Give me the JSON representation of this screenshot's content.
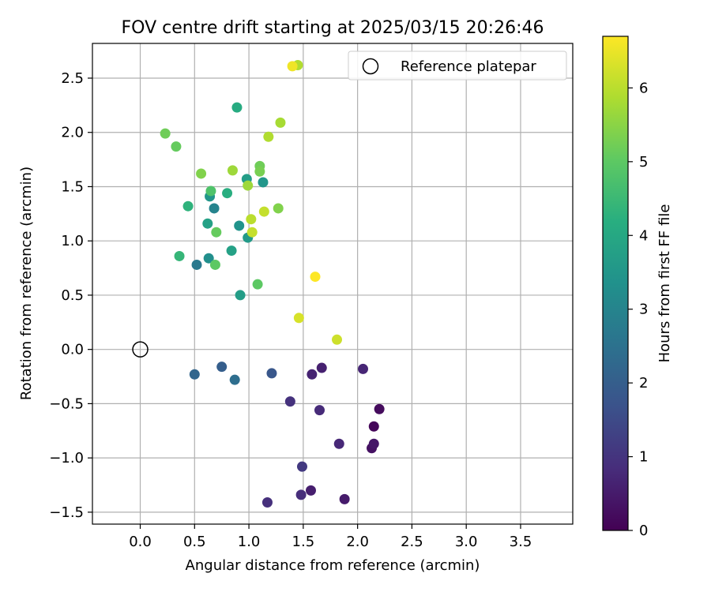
{
  "chart_data": {
    "type": "scatter",
    "title": "FOV centre drift starting at 2025/03/15 20:26:46",
    "xlabel": "Angular distance from reference (arcmin)",
    "ylabel": "Rotation from reference (arcmin)",
    "xlim": [
      -0.44,
      3.98
    ],
    "ylim": [
      -1.61,
      2.82
    ],
    "xticks": [
      0.0,
      0.5,
      1.0,
      1.5,
      2.0,
      2.5,
      3.0,
      3.5
    ],
    "xtick_labels": [
      "0.0",
      "0.5",
      "1.0",
      "1.5",
      "2.0",
      "2.5",
      "3.0",
      "3.5"
    ],
    "yticks": [
      -1.5,
      -1.0,
      -0.5,
      0.0,
      0.5,
      1.0,
      1.5,
      2.0,
      2.5
    ],
    "ytick_labels": [
      "−1.5",
      "−1.0",
      "−0.5",
      "0.0",
      "0.5",
      "1.0",
      "1.5",
      "2.0",
      "2.5"
    ],
    "grid": true,
    "legend_position": "top-right",
    "reference": {
      "label": "Reference platepar",
      "x": 0.0,
      "y": 0.0
    },
    "colorbar": {
      "label": "Hours from first FF file",
      "colormap": "viridis",
      "range": [
        0,
        6.7
      ],
      "ticks": [
        0,
        1,
        2,
        3,
        4,
        5,
        6
      ],
      "tick_labels": [
        "0",
        "1",
        "2",
        "3",
        "4",
        "5",
        "6"
      ]
    },
    "points": [
      {
        "x": 2.15,
        "y": -0.71,
        "t": 0.1
      },
      {
        "x": 2.2,
        "y": -0.55,
        "t": 0.2
      },
      {
        "x": 2.13,
        "y": -0.91,
        "t": 0.3
      },
      {
        "x": 2.15,
        "y": -0.87,
        "t": 0.4
      },
      {
        "x": 1.88,
        "y": -1.38,
        "t": 0.5
      },
      {
        "x": 1.57,
        "y": -1.3,
        "t": 0.55
      },
      {
        "x": 1.67,
        "y": -0.17,
        "t": 0.6
      },
      {
        "x": 1.58,
        "y": -0.23,
        "t": 0.65
      },
      {
        "x": 2.05,
        "y": -0.18,
        "t": 0.7
      },
      {
        "x": 1.83,
        "y": -0.87,
        "t": 0.75
      },
      {
        "x": 1.65,
        "y": -0.56,
        "t": 0.8
      },
      {
        "x": 1.48,
        "y": -1.34,
        "t": 0.85
      },
      {
        "x": 1.17,
        "y": -1.41,
        "t": 0.9
      },
      {
        "x": 1.38,
        "y": -0.48,
        "t": 0.95
      },
      {
        "x": 1.49,
        "y": -1.08,
        "t": 1.1
      },
      {
        "x": 1.21,
        "y": -0.22,
        "t": 1.8
      },
      {
        "x": 0.75,
        "y": -0.16,
        "t": 2.0
      },
      {
        "x": 0.5,
        "y": -0.23,
        "t": 2.2
      },
      {
        "x": 0.87,
        "y": -0.28,
        "t": 2.4
      },
      {
        "x": 0.52,
        "y": 0.78,
        "t": 2.7
      },
      {
        "x": 0.68,
        "y": 1.3,
        "t": 3.0
      },
      {
        "x": 0.63,
        "y": 0.84,
        "t": 3.3
      },
      {
        "x": 0.91,
        "y": 1.14,
        "t": 3.4
      },
      {
        "x": 0.64,
        "y": 1.41,
        "t": 3.5
      },
      {
        "x": 0.99,
        "y": 1.03,
        "t": 3.6
      },
      {
        "x": 1.13,
        "y": 1.54,
        "t": 3.5
      },
      {
        "x": 0.92,
        "y": 0.5,
        "t": 3.7
      },
      {
        "x": 0.84,
        "y": 0.91,
        "t": 3.8
      },
      {
        "x": 0.98,
        "y": 1.57,
        "t": 3.7
      },
      {
        "x": 0.62,
        "y": 1.16,
        "t": 3.8
      },
      {
        "x": 0.89,
        "y": 2.23,
        "t": 4.1
      },
      {
        "x": 0.8,
        "y": 1.44,
        "t": 4.2
      },
      {
        "x": 0.44,
        "y": 1.32,
        "t": 4.3
      },
      {
        "x": 0.36,
        "y": 0.86,
        "t": 4.4
      },
      {
        "x": 0.65,
        "y": 1.46,
        "t": 4.8
      },
      {
        "x": 0.69,
        "y": 0.78,
        "t": 5.0
      },
      {
        "x": 0.7,
        "y": 1.08,
        "t": 5.1
      },
      {
        "x": 1.08,
        "y": 0.6,
        "t": 5.0
      },
      {
        "x": 0.33,
        "y": 1.87,
        "t": 5.1
      },
      {
        "x": 0.23,
        "y": 1.99,
        "t": 5.2
      },
      {
        "x": 1.1,
        "y": 1.69,
        "t": 5.2
      },
      {
        "x": 1.1,
        "y": 1.64,
        "t": 5.3
      },
      {
        "x": 0.56,
        "y": 1.62,
        "t": 5.4
      },
      {
        "x": 1.27,
        "y": 1.3,
        "t": 5.4
      },
      {
        "x": 0.85,
        "y": 1.65,
        "t": 5.7
      },
      {
        "x": 0.99,
        "y": 1.51,
        "t": 5.7
      },
      {
        "x": 1.29,
        "y": 2.09,
        "t": 5.8
      },
      {
        "x": 1.18,
        "y": 1.96,
        "t": 5.9
      },
      {
        "x": 1.45,
        "y": 2.62,
        "t": 5.9
      },
      {
        "x": 1.02,
        "y": 1.2,
        "t": 6.0
      },
      {
        "x": 1.03,
        "y": 1.08,
        "t": 6.1
      },
      {
        "x": 1.14,
        "y": 1.27,
        "t": 6.1
      },
      {
        "x": 1.81,
        "y": 0.09,
        "t": 6.2
      },
      {
        "x": 1.46,
        "y": 0.29,
        "t": 6.3
      },
      {
        "x": 1.4,
        "y": 2.61,
        "t": 6.55
      },
      {
        "x": 1.61,
        "y": 0.67,
        "t": 6.7
      }
    ]
  }
}
